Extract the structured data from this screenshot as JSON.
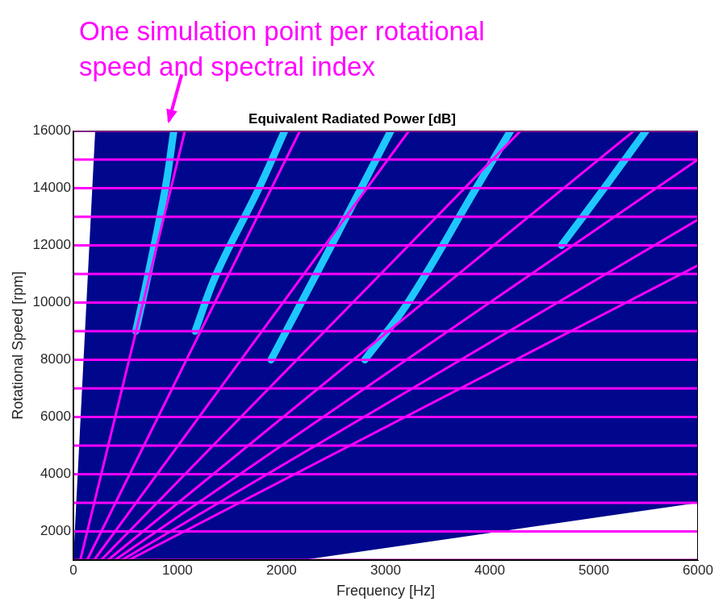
{
  "chart_data": {
    "type": "scatter",
    "title": "Equivalent Radiated Power [dB]",
    "x_label": "Frequency [Hz]",
    "y_label": "Rotational Speed [rpm]",
    "xlim": [
      0,
      6000
    ],
    "xticks": [
      0,
      1000,
      2000,
      3000,
      4000,
      5000,
      6000
    ],
    "ylim": [
      1000,
      16000
    ],
    "yticks": [
      2000,
      4000,
      6000,
      8000,
      10000,
      12000,
      14000,
      16000
    ],
    "grid": false,
    "annotation": {
      "text": [
        "One simulation point per rotational",
        "speed and spectral index"
      ],
      "color": "#ff00ff"
    },
    "series": [
      {
        "type": "area",
        "color": "#00078c",
        "x": [
          0,
          210,
          6000,
          6000,
          2200,
          0
        ],
        "y": [
          1000,
          16000,
          16000,
          3000,
          1000,
          1000
        ]
      },
      {
        "type": "line",
        "color": "#1ec8ff",
        "x": [
          600,
          720,
          884,
          965
        ],
        "y": [
          9000,
          11000,
          14000,
          16000
        ]
      },
      {
        "type": "line",
        "color": "#1ec8ff",
        "x": [
          1170,
          1375,
          1784,
          2030
        ],
        "y": [
          9000,
          11000,
          14000,
          16000
        ]
      },
      {
        "type": "line",
        "color": "#1ec8ff",
        "x": [
          1900,
          2190,
          2480,
          3050
        ],
        "y": [
          8000,
          10000,
          12000,
          16000
        ]
      },
      {
        "type": "line",
        "color": "#1ec8ff",
        "x": [
          2800,
          3215,
          3870,
          4200
        ],
        "y": [
          8000,
          10000,
          14000,
          16000
        ]
      },
      {
        "type": "line",
        "color": "#1ec8ff",
        "x": [
          4690,
          5100,
          5500
        ],
        "y": [
          12000,
          14000,
          16000
        ]
      },
      {
        "type": "line",
        "color": "#ff00ff",
        "x": [
          0,
          6000
        ],
        "y": [
          1000,
          1000
        ]
      },
      {
        "type": "line",
        "color": "#ff00ff",
        "x": [
          0,
          6000
        ],
        "y": [
          2000,
          2000
        ]
      },
      {
        "type": "line",
        "color": "#ff00ff",
        "x": [
          0,
          6000
        ],
        "y": [
          3000,
          3000
        ]
      },
      {
        "type": "line",
        "color": "#ff00ff",
        "x": [
          0,
          6000
        ],
        "y": [
          4000,
          4000
        ]
      },
      {
        "type": "line",
        "color": "#ff00ff",
        "x": [
          0,
          6000
        ],
        "y": [
          5000,
          5000
        ]
      },
      {
        "type": "line",
        "color": "#ff00ff",
        "x": [
          0,
          6000
        ],
        "y": [
          6000,
          6000
        ]
      },
      {
        "type": "line",
        "color": "#ff00ff",
        "x": [
          0,
          6000
        ],
        "y": [
          7000,
          7000
        ]
      },
      {
        "type": "line",
        "color": "#ff00ff",
        "x": [
          0,
          6000
        ],
        "y": [
          8000,
          8000
        ]
      },
      {
        "type": "line",
        "color": "#ff00ff",
        "x": [
          0,
          6000
        ],
        "y": [
          9000,
          9000
        ]
      },
      {
        "type": "line",
        "color": "#ff00ff",
        "x": [
          0,
          6000
        ],
        "y": [
          10000,
          10000
        ]
      },
      {
        "type": "line",
        "color": "#ff00ff",
        "x": [
          0,
          6000
        ],
        "y": [
          11000,
          11000
        ]
      },
      {
        "type": "line",
        "color": "#ff00ff",
        "x": [
          0,
          6000
        ],
        "y": [
          12000,
          12000
        ]
      },
      {
        "type": "line",
        "color": "#ff00ff",
        "x": [
          0,
          6000
        ],
        "y": [
          13000,
          13000
        ]
      },
      {
        "type": "line",
        "color": "#ff00ff",
        "x": [
          0,
          6000
        ],
        "y": [
          14000,
          14000
        ]
      },
      {
        "type": "line",
        "color": "#ff00ff",
        "x": [
          0,
          6000
        ],
        "y": [
          15000,
          15000
        ]
      },
      {
        "type": "line",
        "color": "#ff00ff",
        "x": [
          0,
          6000
        ],
        "y": [
          16000,
          16000
        ]
      },
      {
        "type": "line",
        "color": "#ff00ff",
        "x": [
          67,
          1072
        ],
        "y": [
          1000,
          16000
        ]
      },
      {
        "type": "line",
        "color": "#ff00ff",
        "x": [
          133,
          2177
        ],
        "y": [
          1000,
          16000
        ]
      },
      {
        "type": "line",
        "color": "#ff00ff",
        "x": [
          200,
          3224
        ],
        "y": [
          1000,
          16000
        ]
      },
      {
        "type": "line",
        "color": "#ff00ff",
        "x": [
          267,
          4296
        ],
        "y": [
          1000,
          16000
        ]
      },
      {
        "type": "line",
        "color": "#ff00ff",
        "x": [
          333,
          5385
        ],
        "y": [
          1000,
          16000
        ]
      },
      {
        "type": "line",
        "color": "#ff00ff",
        "x": [
          400,
          6000
        ],
        "y": [
          1000,
          15000
        ]
      },
      {
        "type": "line",
        "color": "#ff00ff",
        "x": [
          467,
          6000
        ],
        "y": [
          1000,
          12900
        ]
      },
      {
        "type": "line",
        "color": "#ff00ff",
        "x": [
          533,
          6000
        ],
        "y": [
          1000,
          11300
        ]
      }
    ]
  }
}
